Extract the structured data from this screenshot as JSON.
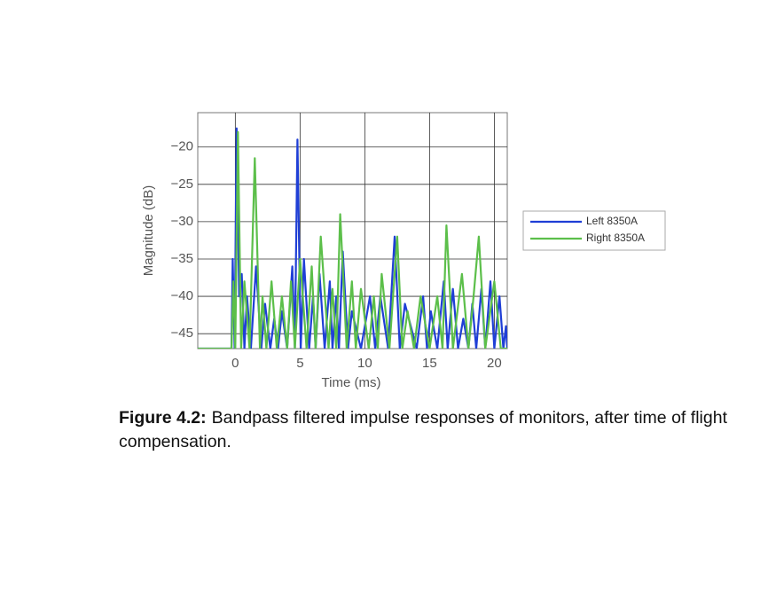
{
  "chart_data": {
    "type": "line",
    "xlabel": "Time (ms)",
    "ylabel": "Magnitude (dB)",
    "xlim": [
      -2.9,
      21.0
    ],
    "ylim": [
      -47,
      -15.4
    ],
    "xticks": [
      0,
      5,
      10,
      15,
      20
    ],
    "yticks": [
      {
        "value": -20,
        "label": "−20"
      },
      {
        "value": -25,
        "label": "−25"
      },
      {
        "value": -30,
        "label": "−30"
      },
      {
        "value": -35,
        "label": "−35"
      },
      {
        "value": -40,
        "label": "−40"
      },
      {
        "value": -45,
        "label": "−45"
      }
    ],
    "grid": true,
    "legend": "right",
    "series": [
      {
        "name": "Left 8350A",
        "color": "#1f3fd6",
        "x": [
          -2.9,
          -0.3,
          -0.2,
          -0.05,
          0.1,
          0.3,
          0.5,
          0.7,
          0.9,
          1.2,
          1.6,
          2.0,
          2.3,
          2.7,
          3.0,
          3.3,
          3.6,
          4.0,
          4.4,
          4.6,
          4.8,
          5.05,
          5.3,
          5.7,
          6.0,
          6.2,
          6.5,
          6.9,
          7.3,
          7.5,
          7.8,
          8.0,
          8.3,
          8.7,
          9.0,
          9.7,
          10.4,
          10.8,
          11.2,
          11.8,
          12.3,
          12.7,
          13.1,
          14.0,
          14.5,
          14.8,
          15.1,
          15.6,
          16.1,
          16.4,
          16.8,
          17.2,
          17.6,
          18.0,
          18.3,
          18.6,
          19.0,
          19.3,
          19.7,
          20.0,
          20.4,
          20.7,
          20.9,
          21.0
        ],
        "values": [
          -47,
          -47,
          -35,
          -47,
          -17.5,
          -40,
          -37,
          -47,
          -40,
          -47,
          -36,
          -47,
          -41,
          -47,
          -43,
          -47,
          -42,
          -47,
          -36,
          -47,
          -19,
          -47,
          -35,
          -47,
          -40,
          -47,
          -37,
          -47,
          -38,
          -47,
          -40,
          -47,
          -34,
          -47,
          -42,
          -47,
          -40,
          -47,
          -40,
          -47,
          -32,
          -47,
          -41,
          -47,
          -40,
          -47,
          -42,
          -47,
          -38,
          -47,
          -39,
          -47,
          -43,
          -47,
          -41,
          -47,
          -39,
          -47,
          -38,
          -47,
          -40,
          -47,
          -44,
          -47
        ]
      },
      {
        "name": "Right 8350A",
        "color": "#5cbf4a",
        "x": [
          -2.9,
          -0.3,
          -0.15,
          0.0,
          0.2,
          0.45,
          0.7,
          1.1,
          1.5,
          1.9,
          2.1,
          2.4,
          2.8,
          3.2,
          3.6,
          4.0,
          4.3,
          4.6,
          5.0,
          5.5,
          5.9,
          6.2,
          6.6,
          7.2,
          7.5,
          7.8,
          8.1,
          8.6,
          9.0,
          9.3,
          9.7,
          10.3,
          10.7,
          11.0,
          11.3,
          11.9,
          12.5,
          12.9,
          13.3,
          13.8,
          14.3,
          15.0,
          15.6,
          16.0,
          16.3,
          16.8,
          17.5,
          18.0,
          18.4,
          18.8,
          19.3,
          20.0,
          20.5,
          21.0
        ],
        "values": [
          -47,
          -47,
          -38,
          -47,
          -18,
          -47,
          -38,
          -47,
          -21.5,
          -47,
          -40,
          -47,
          -38,
          -47,
          -40,
          -47,
          -38,
          -47,
          -35,
          -47,
          -36,
          -47,
          -32,
          -47,
          -39,
          -47,
          -29,
          -47,
          -38,
          -47,
          -39,
          -47,
          -40,
          -47,
          -37,
          -47,
          -32,
          -47,
          -42,
          -47,
          -40,
          -47,
          -40,
          -47,
          -30.5,
          -47,
          -37,
          -47,
          -40,
          -32,
          -47,
          -38,
          -47,
          -47
        ]
      }
    ]
  },
  "caption": {
    "label": "Figure 4.2:",
    "text": "Bandpass filtered impulse responses of monitors, after time of flight compensation."
  }
}
